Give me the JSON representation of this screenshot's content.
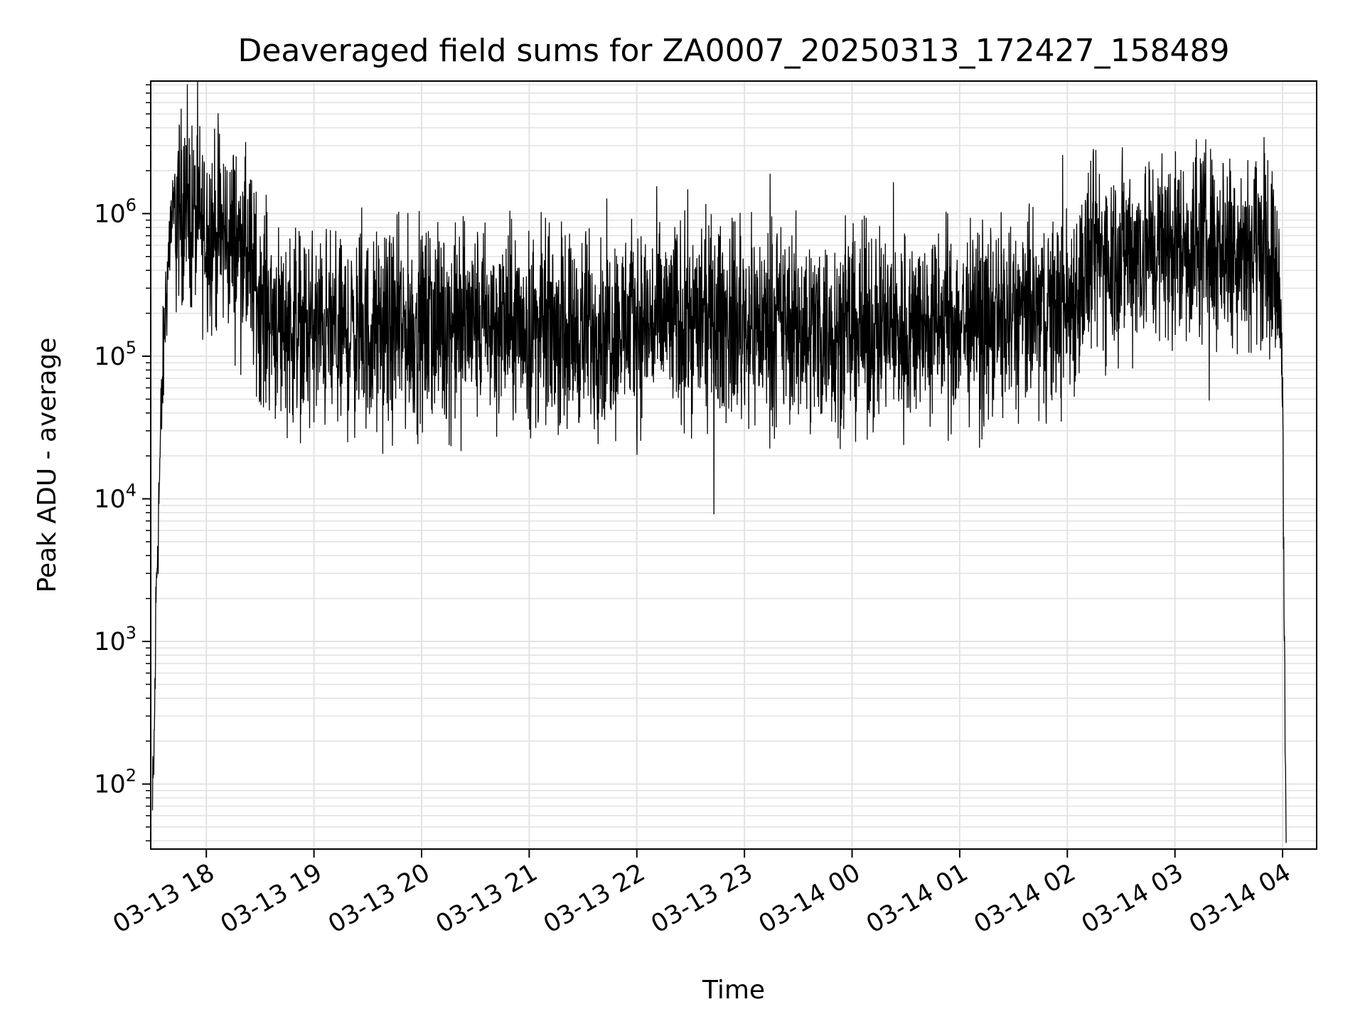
{
  "chart_data": {
    "type": "line",
    "title": "Deaveraged field sums for ZA0007_20250313_172427_158489",
    "xlabel": "Time",
    "ylabel": "Peak ADU - average",
    "y_scale": "log",
    "ylim": [
      35,
      8500000
    ],
    "xlim": [
      "2025-03-13 17:29",
      "2025-03-14 04:19"
    ],
    "grid": true,
    "line_color": "#000000",
    "grid_color": "#e3e3e3",
    "x_ticks": [
      {
        "value": "2025-03-13 18:00",
        "label": "03-13 18"
      },
      {
        "value": "2025-03-13 19:00",
        "label": "03-13 19"
      },
      {
        "value": "2025-03-13 20:00",
        "label": "03-13 20"
      },
      {
        "value": "2025-03-13 21:00",
        "label": "03-13 21"
      },
      {
        "value": "2025-03-13 22:00",
        "label": "03-13 22"
      },
      {
        "value": "2025-03-13 23:00",
        "label": "03-13 23"
      },
      {
        "value": "2025-03-14 00:00",
        "label": "03-14 00"
      },
      {
        "value": "2025-03-14 01:00",
        "label": "03-14 01"
      },
      {
        "value": "2025-03-14 02:00",
        "label": "03-14 02"
      },
      {
        "value": "2025-03-14 03:00",
        "label": "03-14 03"
      },
      {
        "value": "2025-03-14 04:00",
        "label": "03-14 04"
      }
    ],
    "y_ticks": [
      {
        "value": 100,
        "base": "10",
        "exp": "2"
      },
      {
        "value": 1000,
        "base": "10",
        "exp": "3"
      },
      {
        "value": 10000,
        "base": "10",
        "exp": "4"
      },
      {
        "value": 100000,
        "base": "10",
        "exp": "5"
      },
      {
        "value": 1000000,
        "base": "10",
        "exp": "6"
      }
    ],
    "series": [
      {
        "x": [
          "2025-03-13 17:30",
          "2025-03-13 17:31",
          "2025-03-13 17:32",
          "2025-03-13 17:33",
          "2025-03-13 17:35",
          "2025-03-13 17:37",
          "2025-03-13 17:40",
          "2025-03-13 17:45",
          "2025-03-13 17:50",
          "2025-03-13 17:55",
          "2025-03-13 18:00",
          "2025-03-13 18:10",
          "2025-03-13 18:20",
          "2025-03-13 18:25",
          "2025-03-13 18:30",
          "2025-03-13 18:40",
          "2025-03-13 19:00",
          "2025-03-13 19:30",
          "2025-03-13 20:00",
          "2025-03-13 20:30",
          "2025-03-13 21:00",
          "2025-03-13 21:30",
          "2025-03-13 22:00",
          "2025-03-13 22:30",
          "2025-03-13 23:00",
          "2025-03-13 23:30",
          "2025-03-14 00:00",
          "2025-03-14 00:30",
          "2025-03-14 01:00",
          "2025-03-14 01:30",
          "2025-03-14 02:00",
          "2025-03-14 02:15",
          "2025-03-14 02:30",
          "2025-03-14 03:00",
          "2025-03-14 03:30",
          "2025-03-14 03:50",
          "2025-03-14 03:58",
          "2025-03-14 04:00",
          "2025-03-14 04:01",
          "2025-03-14 04:02"
        ],
        "y": [
          60,
          200,
          2000,
          6000,
          40000,
          200000,
          800000,
          1100000,
          1000000,
          900000,
          800000,
          700000,
          600000,
          400000,
          250000,
          180000,
          150000,
          140000,
          160000,
          170000,
          160000,
          150000,
          170000,
          180000,
          170000,
          160000,
          150000,
          160000,
          170000,
          180000,
          220000,
          500000,
          550000,
          600000,
          650000,
          600000,
          300000,
          100000,
          1000,
          40
        ]
      }
    ]
  }
}
